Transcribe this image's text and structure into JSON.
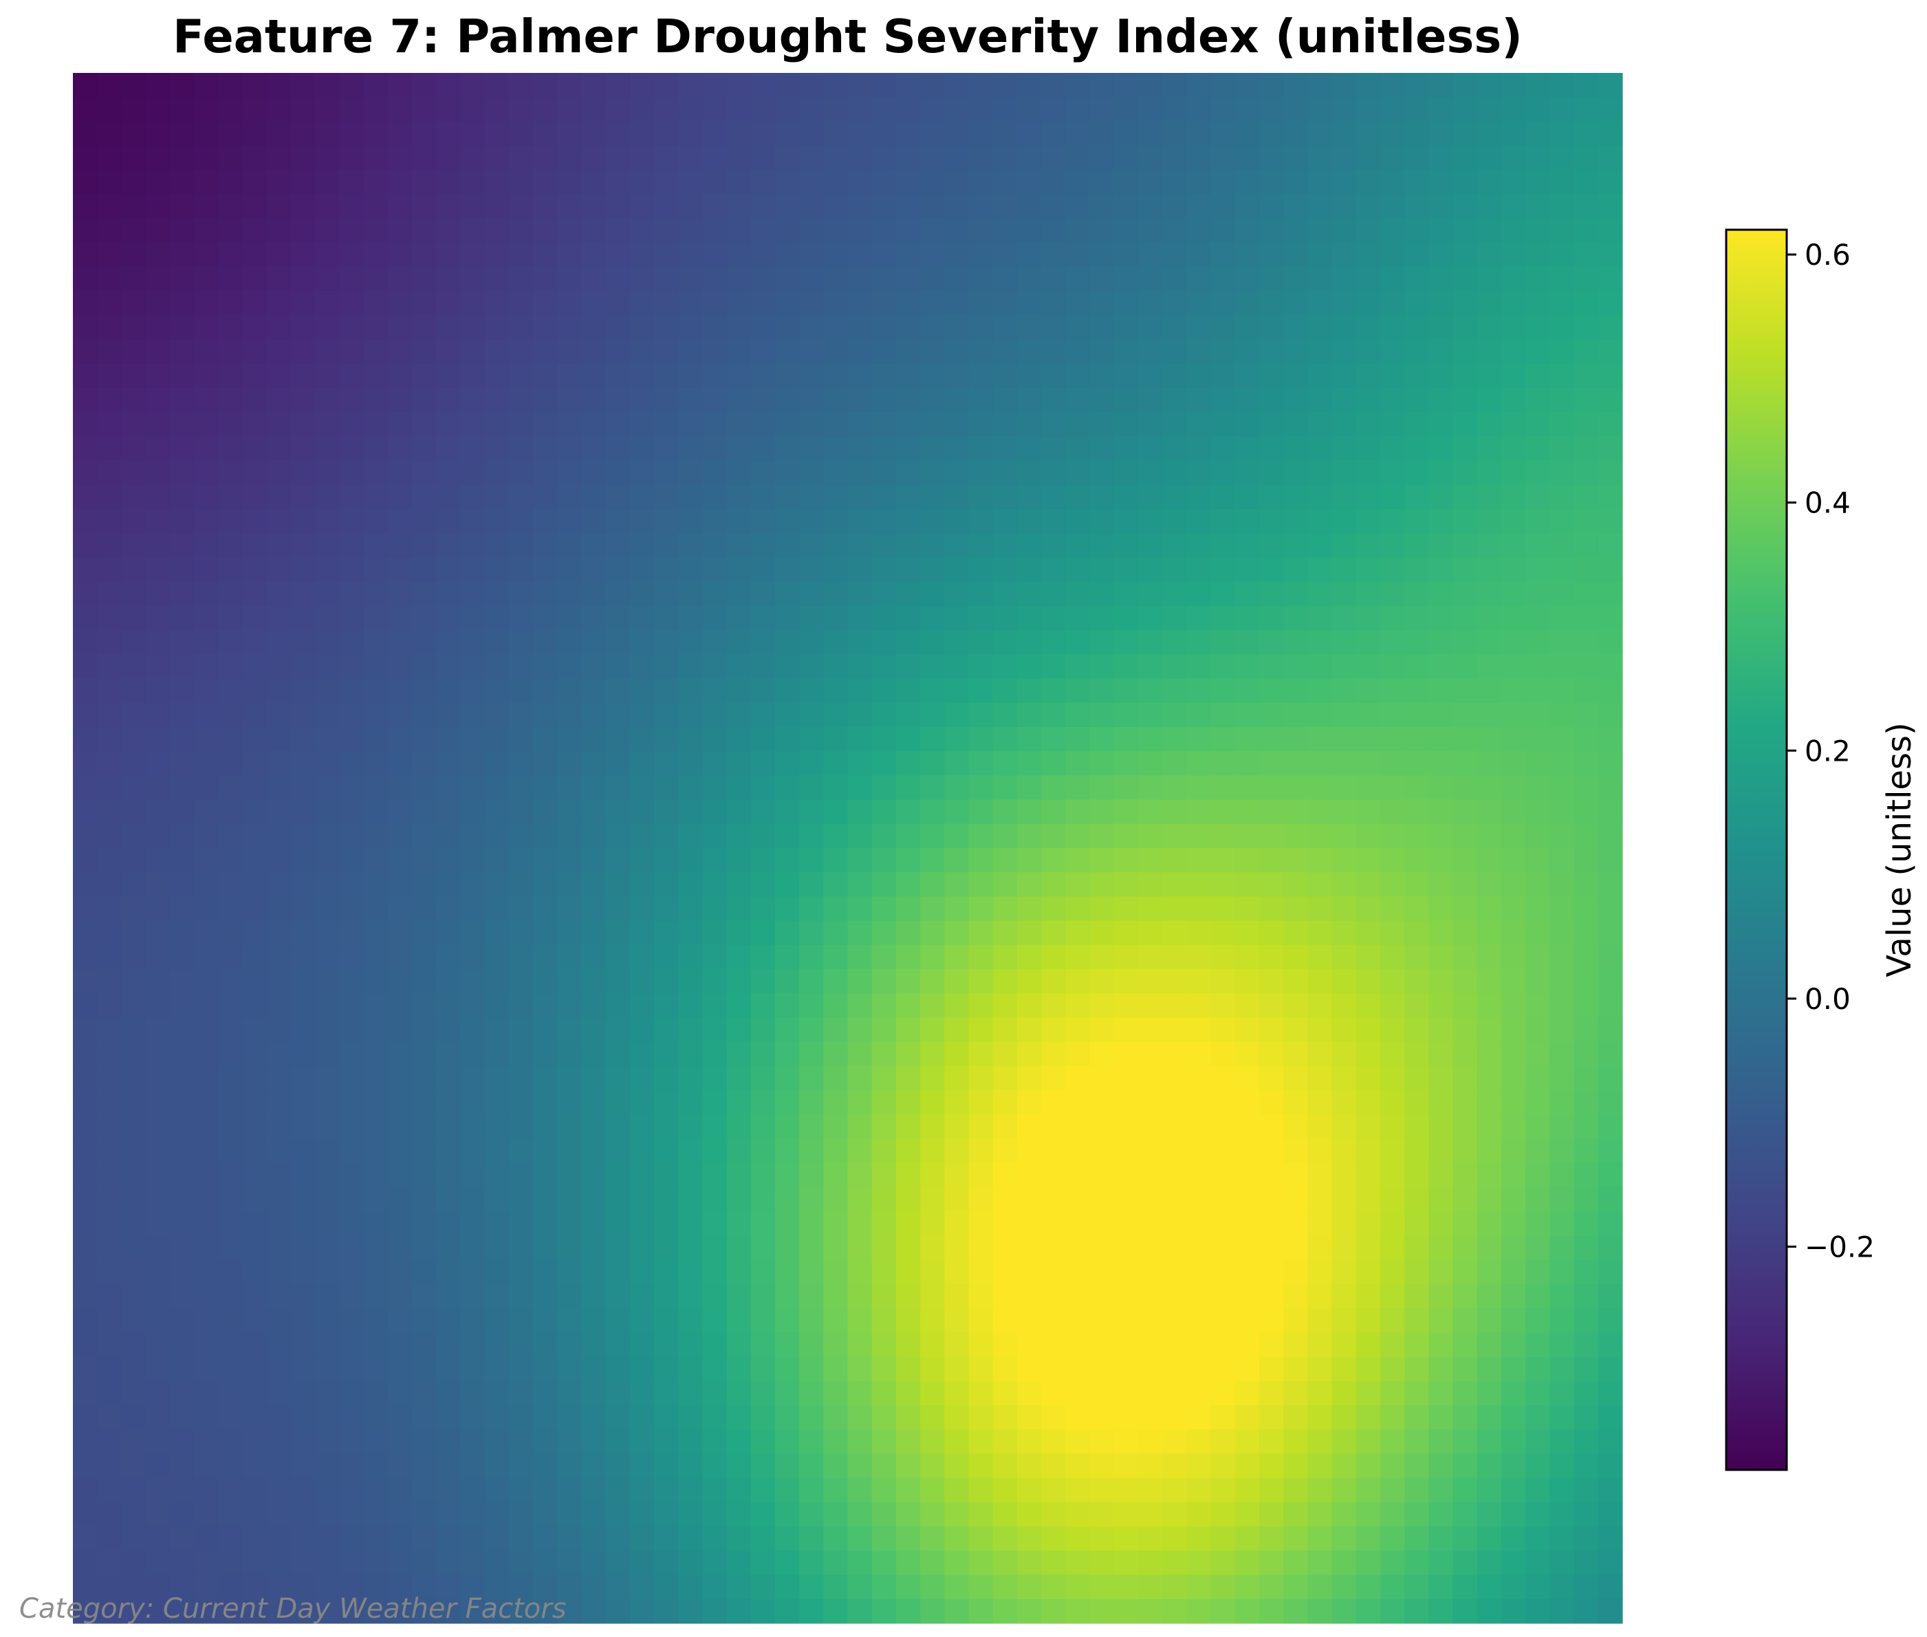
{
  "chart_data": {
    "type": "heatmap",
    "title": "Feature 7: Palmer Drought Severity Index (unitless)",
    "colormap": "viridis",
    "grid": false,
    "colorbar": {
      "label": "Value (unitless)",
      "range": [
        -0.38,
        0.62
      ],
      "ticks": [
        -0.2,
        0.0,
        0.2,
        0.4,
        0.6
      ],
      "tick_labels": [
        "−0.2",
        "0.0",
        "0.2",
        "0.4",
        "0.6"
      ],
      "placement": "right"
    },
    "grid_size": [
      64,
      64
    ],
    "field_approximation": {
      "description_of_value_distribution": "minimum in top-left corner, broad maximum in lower-center-right, green band along right edge",
      "components": [
        {
          "kind": "offset",
          "value": -0.17
        },
        {
          "kind": "gaussian",
          "cx": 0.67,
          "cy": 0.78,
          "sx": 0.2,
          "sy": 0.28,
          "amp": 0.78
        },
        {
          "kind": "gaussian",
          "cx": 1.05,
          "cy": 0.35,
          "sx": 0.2,
          "sy": 0.4,
          "amp": 0.42
        },
        {
          "kind": "gaussian",
          "cx": 0.35,
          "cy": 0.35,
          "sx": 0.35,
          "sy": 0.35,
          "amp": 0.12
        },
        {
          "kind": "gaussian",
          "cx": 0.0,
          "cy": 0.0,
          "sx": 0.3,
          "sy": 0.3,
          "amp": -0.24
        }
      ]
    }
  },
  "footer": {
    "category_text": "Category: Current Day Weather Factors"
  }
}
